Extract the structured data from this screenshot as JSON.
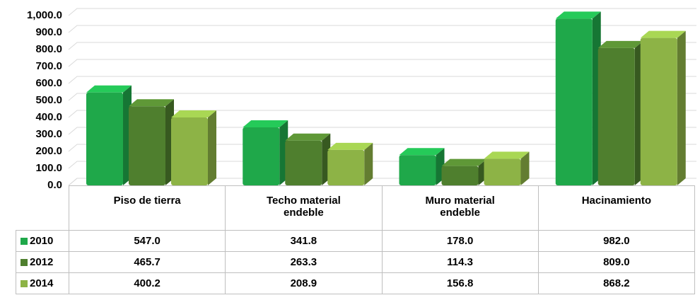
{
  "chart_data": {
    "type": "bar3d",
    "categories": [
      "Piso de tierra",
      "Techo material endeble",
      "Muro material endeble",
      "Hacinamiento"
    ],
    "series": [
      {
        "name": "2010",
        "color": "#1fa84a",
        "values": [
          547.0,
          341.8,
          178.0,
          982.0
        ],
        "value_labels": [
          "547.0",
          "341.8",
          "178.0",
          "982.0"
        ]
      },
      {
        "name": "2012",
        "color": "#4f7f2e",
        "values": [
          465.7,
          263.3,
          114.3,
          809.0
        ],
        "value_labels": [
          "465.7",
          "263.3",
          "114.3",
          "809.0"
        ]
      },
      {
        "name": "2014",
        "color": "#8db346",
        "values": [
          400.2,
          208.9,
          156.8,
          868.2
        ],
        "value_labels": [
          "400.2",
          "208.9",
          "156.8",
          "868.2"
        ]
      }
    ],
    "ylim": [
      0,
      1000
    ],
    "yticks": [
      {
        "value": 0,
        "label": "0.0"
      },
      {
        "value": 100,
        "label": "100.0"
      },
      {
        "value": 200,
        "label": "200.0"
      },
      {
        "value": 300,
        "label": "300.0"
      },
      {
        "value": 400,
        "label": "400.0"
      },
      {
        "value": 500,
        "label": "500.0"
      },
      {
        "value": 600,
        "label": "600.0"
      },
      {
        "value": 700,
        "label": "700.0"
      },
      {
        "value": 800,
        "label": "800.0"
      },
      {
        "value": 900,
        "label": "900.0"
      },
      {
        "value": 1000,
        "label": "1,000.0"
      }
    ],
    "grid": true
  }
}
